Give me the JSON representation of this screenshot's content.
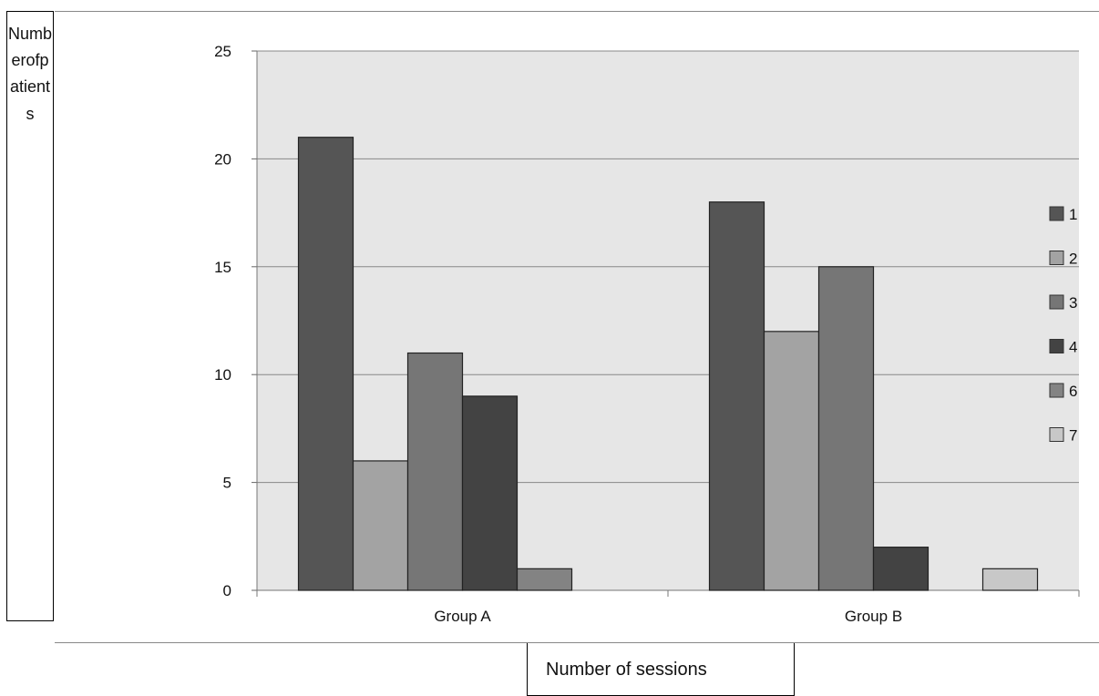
{
  "chart_data": {
    "type": "bar",
    "xlabel": "Number of sessions",
    "ylabel": "Numberofpatients",
    "categories": [
      "Group A",
      "Group B"
    ],
    "ylim": [
      0,
      25
    ],
    "yticks": [
      0,
      5,
      10,
      15,
      20,
      25
    ],
    "grid": true,
    "legend": "right",
    "series": [
      {
        "name": "1",
        "values": [
          21,
          18
        ],
        "color": "#555555"
      },
      {
        "name": "2",
        "values": [
          6,
          12
        ],
        "color": "#a3a3a3"
      },
      {
        "name": "3",
        "values": [
          11,
          15
        ],
        "color": "#767676"
      },
      {
        "name": "4",
        "values": [
          9,
          2
        ],
        "color": "#434343"
      },
      {
        "name": "6",
        "values": [
          1,
          0
        ],
        "color": "#838383"
      },
      {
        "name": "7",
        "values": [
          0,
          1
        ],
        "color": "#c8c8c8"
      }
    ]
  },
  "colors": {
    "plot_background": "#e6e6e6",
    "gridline": "#888888",
    "bar_outline": "#222222"
  }
}
